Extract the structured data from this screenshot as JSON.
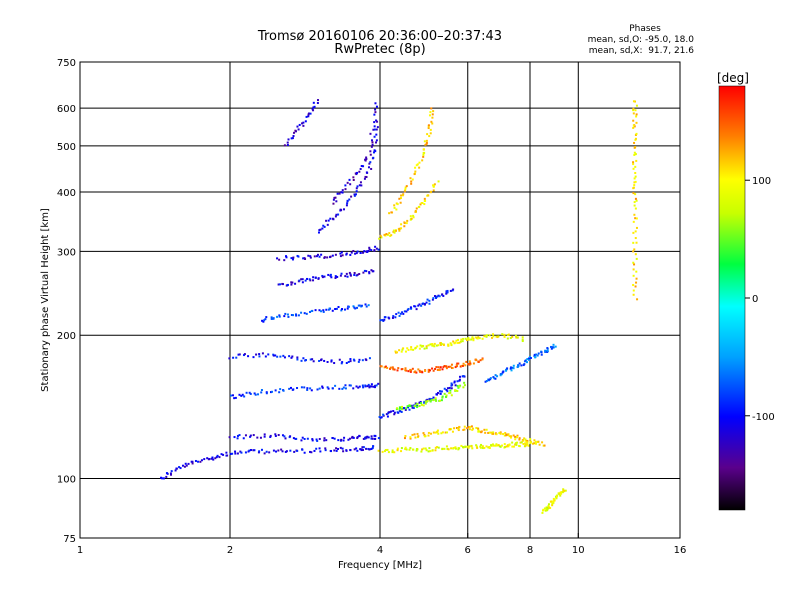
{
  "chart_data": {
    "type": "scatter",
    "title": "Tromsø 20160106 20:36:00–20:37:43",
    "subtitle": "RwPretec (8p)",
    "xlabel": "Frequency [MHz]",
    "ylabel": "Stationary phase Virtual Height [km]",
    "x_scale": "log",
    "y_scale": "log",
    "xlim": [
      1,
      16
    ],
    "ylim": [
      75,
      750
    ],
    "x_ticks": [
      1,
      2,
      4,
      6,
      8,
      10,
      16
    ],
    "x_tick_labels": [
      "1",
      "2",
      "4",
      "6",
      "8",
      "10",
      "16"
    ],
    "y_ticks": [
      75,
      100,
      200,
      300,
      400,
      500,
      600,
      750
    ],
    "y_tick_labels": [
      "75",
      "100",
      "200",
      "300",
      "400",
      "500",
      "600",
      "750"
    ],
    "grid": true,
    "stats": {
      "header": "Phases",
      "line1": "mean, sd,O: -95.0, 18.0",
      "line2": "mean, sd,X:  91.7, 21.6"
    },
    "colorbar": {
      "label": "[deg]",
      "range": [
        -180,
        180
      ],
      "ticks": [
        100,
        0,
        -100
      ],
      "tick_labels": [
        "100",
        "0",
        "-100"
      ],
      "colormap": "rainbow"
    },
    "traces": [
      {
        "x": [
          1.45,
          1.6,
          1.8,
          2.0,
          2.3,
          2.7,
          3.2,
          3.6,
          3.9
        ],
        "y": [
          100,
          106,
          110,
          113,
          114,
          114,
          115,
          115,
          116
        ],
        "phase": -110
      },
      {
        "x": [
          2.0,
          2.4,
          2.8,
          3.3,
          3.7,
          3.95
        ],
        "y": [
          122,
          123,
          121,
          121,
          122,
          122
        ],
        "phase": -105
      },
      {
        "x": [
          2.0,
          2.3,
          2.7,
          3.2,
          3.7,
          3.95
        ],
        "y": [
          148,
          152,
          154,
          155,
          156,
          157
        ],
        "phase": -90
      },
      {
        "x": [
          2.0,
          2.4,
          2.8,
          3.3,
          3.8
        ],
        "y": [
          180,
          182,
          178,
          176,
          178
        ],
        "phase": -100
      },
      {
        "x": [
          2.3,
          2.6,
          3.0,
          3.4,
          3.8
        ],
        "y": [
          215,
          220,
          225,
          228,
          232
        ],
        "phase": -80
      },
      {
        "x": [
          2.5,
          2.8,
          3.1,
          3.5,
          3.9
        ],
        "y": [
          255,
          260,
          265,
          268,
          272
        ],
        "phase": -110
      },
      {
        "x": [
          2.5,
          2.9,
          3.3,
          3.7,
          3.95
        ],
        "y": [
          290,
          292,
          295,
          300,
          305
        ],
        "phase": -115
      },
      {
        "x": [
          3.0,
          3.3,
          3.6,
          3.85,
          3.95
        ],
        "y": [
          330,
          360,
          400,
          460,
          560
        ],
        "phase": -110
      },
      {
        "x": [
          3.2,
          3.5,
          3.8,
          3.95
        ],
        "y": [
          380,
          420,
          480,
          620
        ],
        "phase": -120
      },
      {
        "x": [
          2.6,
          2.8,
          3.0
        ],
        "y": [
          500,
          560,
          620
        ],
        "phase": -115
      },
      {
        "x": [
          4.0,
          4.5,
          5.0,
          5.5,
          6.0,
          6.5,
          7.0,
          7.5,
          8.0
        ],
        "y": [
          114,
          115,
          115,
          116,
          116,
          117,
          117,
          118,
          118
        ],
        "phase": 90
      },
      {
        "x": [
          4.5,
          5.0,
          5.5,
          6.0,
          6.5,
          7.0,
          7.5,
          8.0,
          8.5
        ],
        "y": [
          122,
          124,
          126,
          128,
          126,
          124,
          122,
          120,
          118
        ],
        "phase": 110
      },
      {
        "x": [
          4.0,
          4.4,
          4.8,
          5.2,
          5.6,
          6.0,
          6.4
        ],
        "y": [
          172,
          170,
          168,
          170,
          172,
          175,
          178
        ],
        "phase": 150
      },
      {
        "x": [
          4.3,
          4.7,
          5.1,
          5.5,
          5.9,
          6.3,
          7.0,
          7.8
        ],
        "y": [
          185,
          188,
          190,
          192,
          195,
          198,
          200,
          196
        ],
        "phase": 95
      },
      {
        "x": [
          4.0,
          4.3,
          4.6,
          4.9,
          5.2
        ],
        "y": [
          320,
          330,
          350,
          380,
          420
        ],
        "phase": 105
      },
      {
        "x": [
          4.2,
          4.5,
          4.8,
          5.0,
          5.1
        ],
        "y": [
          360,
          400,
          460,
          520,
          600
        ],
        "phase": 110
      },
      {
        "x": [
          4.0,
          4.3,
          4.7,
          5.1,
          5.5,
          5.9
        ],
        "y": [
          135,
          138,
          142,
          148,
          155,
          165
        ],
        "phase": -100
      },
      {
        "x": [
          4.0,
          4.4,
          4.8,
          5.2,
          5.6
        ],
        "y": [
          215,
          222,
          230,
          240,
          250
        ],
        "phase": -95
      },
      {
        "x": [
          4.3,
          4.7,
          5.1,
          5.5,
          5.9
        ],
        "y": [
          140,
          142,
          145,
          150,
          158
        ],
        "phase": 60
      },
      {
        "x": [
          6.5,
          7.0,
          7.5,
          8.0,
          8.5,
          9.0
        ],
        "y": [
          160,
          166,
          172,
          178,
          184,
          190
        ],
        "phase": -70
      },
      {
        "x": [
          13,
          13,
          13,
          13,
          13,
          13
        ],
        "y": [
          240,
          300,
          380,
          450,
          540,
          620
        ],
        "phase": 110
      },
      {
        "x": [
          8.5,
          8.8,
          9.1,
          9.4
        ],
        "y": [
          85,
          88,
          92,
          95
        ],
        "phase": 90
      }
    ]
  }
}
